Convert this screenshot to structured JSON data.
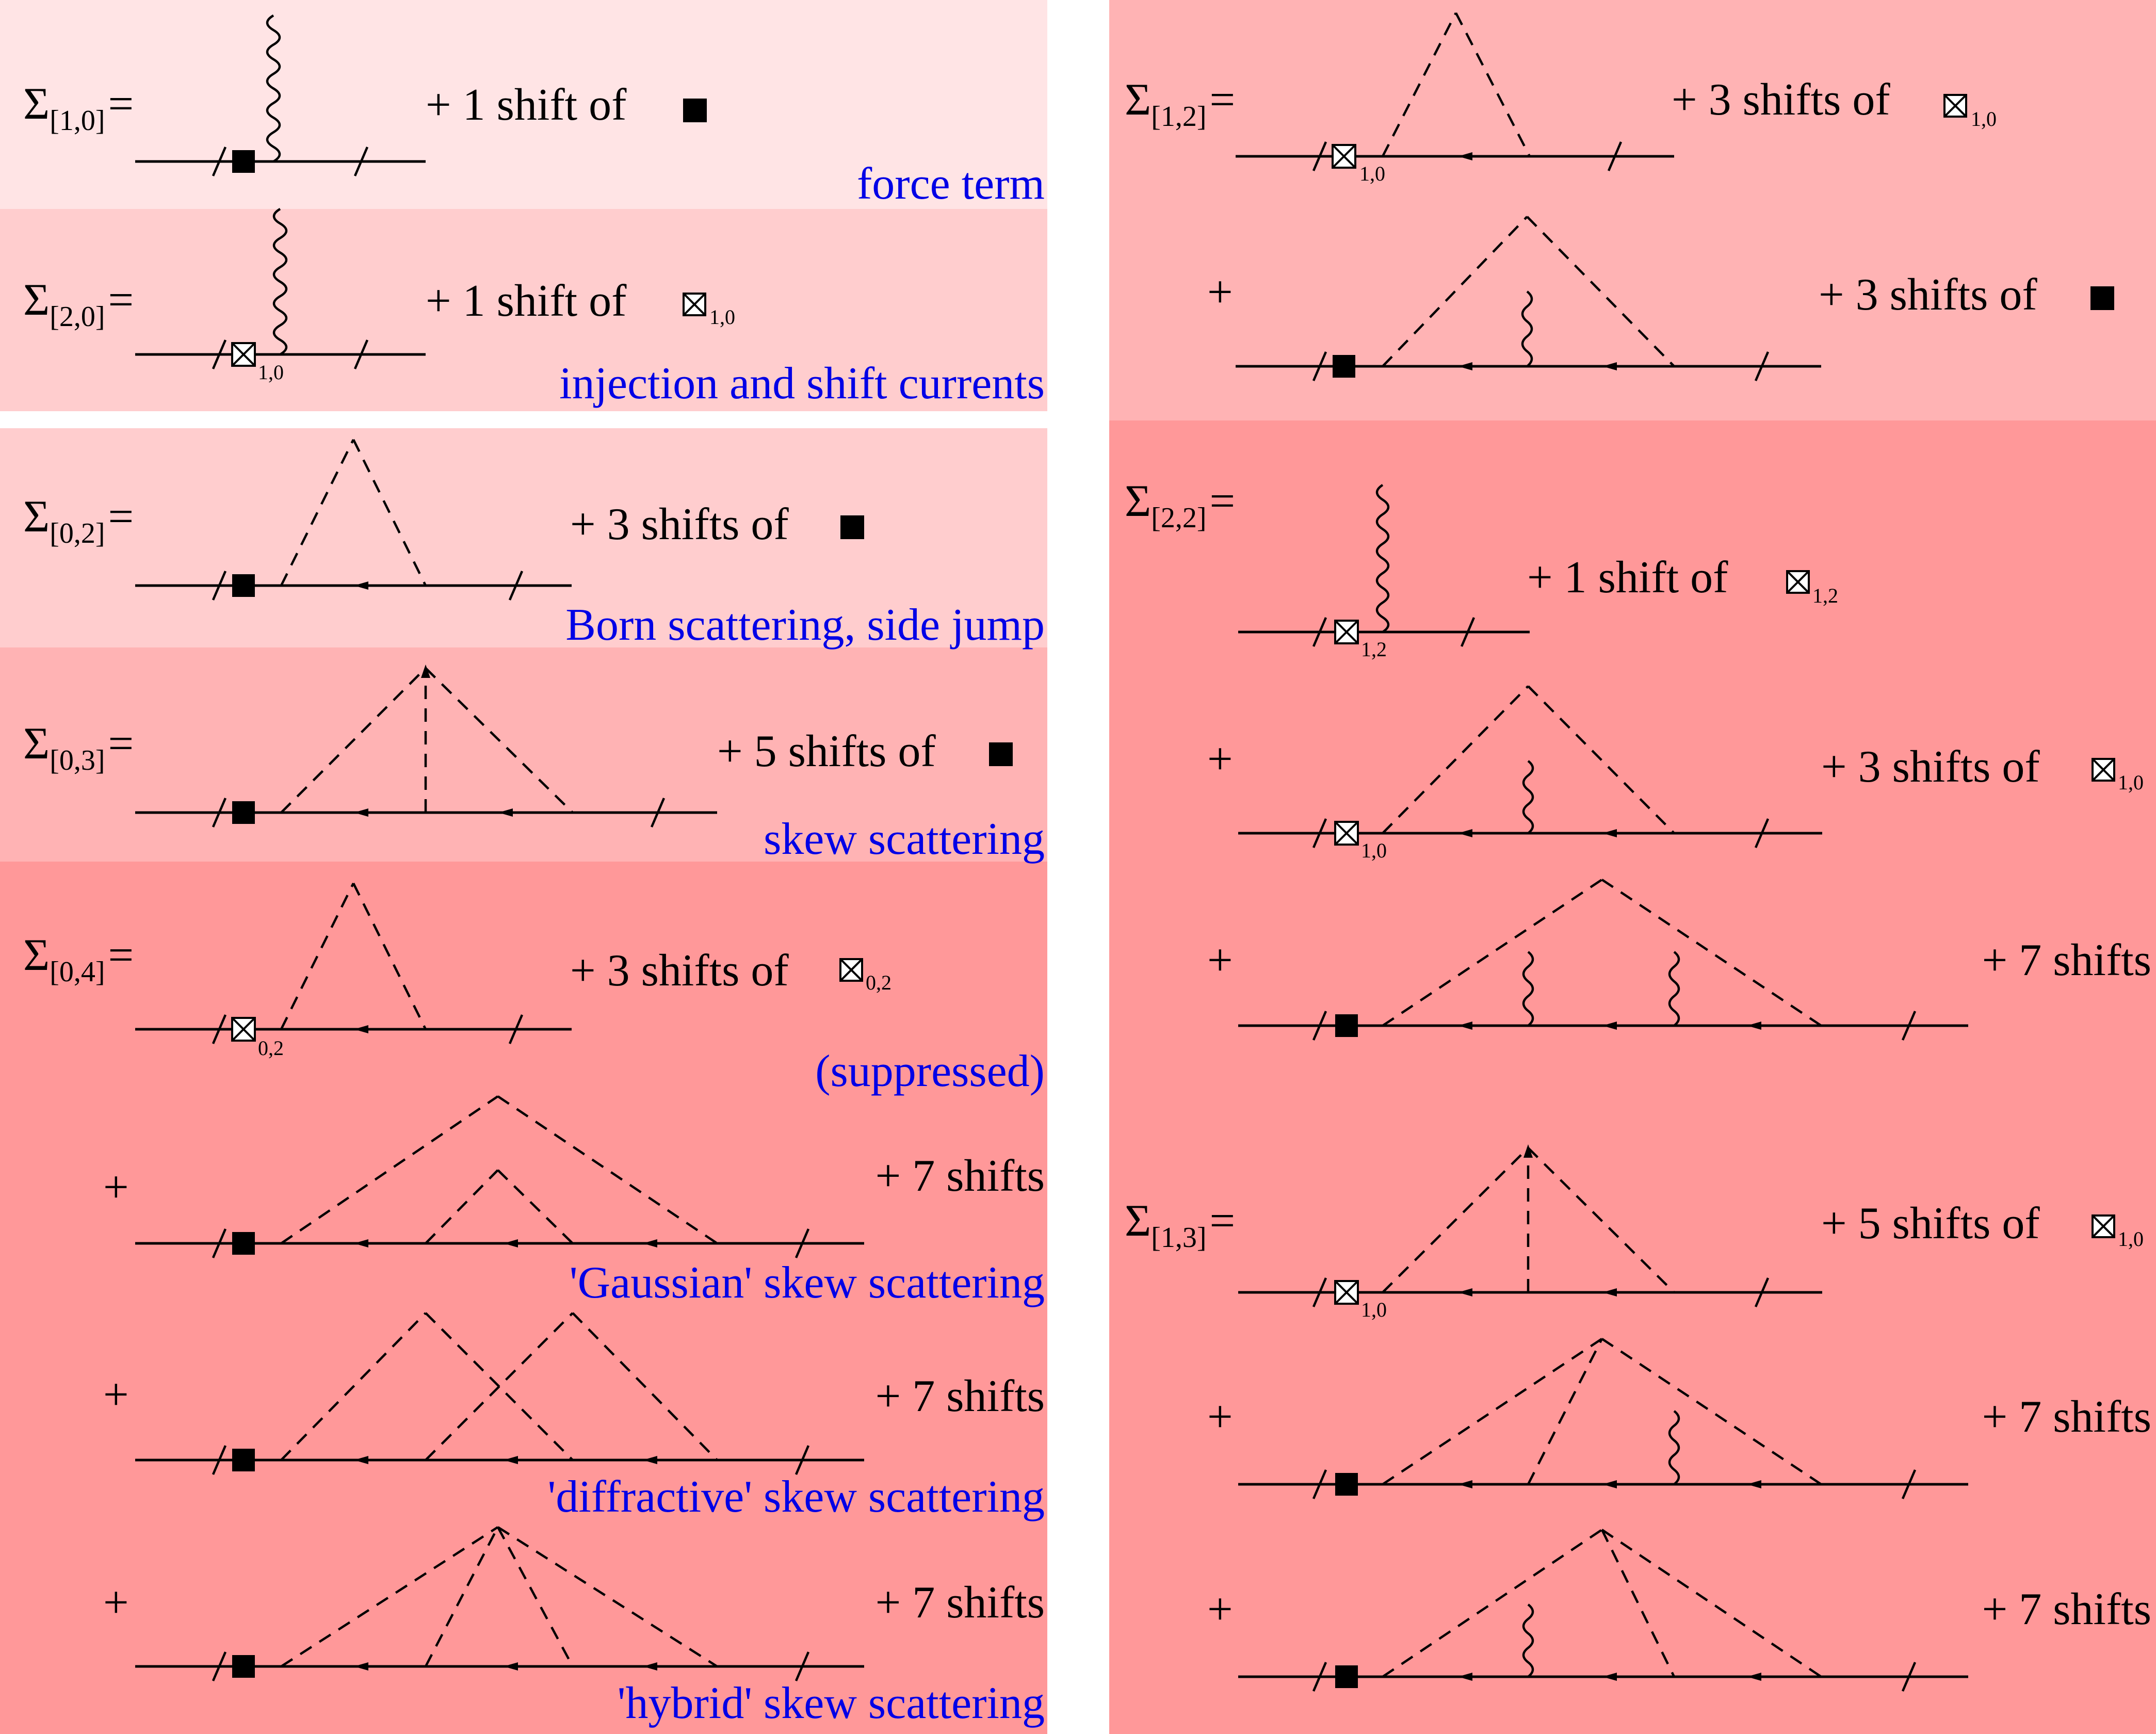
{
  "colors": {
    "band_light": "#ffe4e5",
    "band_mid": "#ffcdce",
    "band_medium": "#ffb3b4",
    "band_dark": "#ff9899",
    "caption": "#0000e6"
  },
  "left_column": [
    {
      "id": "s10",
      "label_sym": "Σ",
      "label_sub": "[1,0]",
      "label_eq": "=",
      "shifts": "+ 1 shift of",
      "vertex": "filled-square",
      "vertex_sub": "",
      "caption": "force term"
    },
    {
      "id": "s20",
      "label_sym": "Σ",
      "label_sub": "[2,0]",
      "label_eq": "=",
      "shifts": "+ 1 shift of",
      "vertex": "crossed-square",
      "vertex_sub": "1,0",
      "caption": "injection and shift currents"
    },
    {
      "id": "s02",
      "label_sym": "Σ",
      "label_sub": "[0,2]",
      "label_eq": "=",
      "shifts": "+ 3 shifts of",
      "vertex": "filled-square",
      "vertex_sub": "",
      "caption": "Born scattering, side jump"
    },
    {
      "id": "s03",
      "label_sym": "Σ",
      "label_sub": "[0,3]",
      "label_eq": "=",
      "shifts": "+ 5 shifts of",
      "vertex": "filled-square",
      "vertex_sub": "",
      "caption": "skew scattering"
    },
    {
      "id": "s04",
      "label_sym": "Σ",
      "label_sub": "[0,4]",
      "label_eq": "=",
      "shifts": "+ 3 shifts of",
      "vertex": "crossed-square",
      "vertex_sub": "0,2",
      "caption": "(suppressed)"
    },
    {
      "id": "s04b",
      "plus": "+",
      "shifts": "+ 7 shifts",
      "caption": "'Gaussian' skew scattering"
    },
    {
      "id": "s04c",
      "plus": "+",
      "shifts": "+ 7 shifts",
      "caption": "'diffractive' skew scattering"
    },
    {
      "id": "s04d",
      "plus": "+",
      "shifts": "+ 7 shifts",
      "caption": "'hybrid' skew scattering"
    }
  ],
  "right_column": [
    {
      "id": "s12",
      "label_sym": "Σ",
      "label_sub": "[1,2]",
      "label_eq": "=",
      "shifts": "+ 3 shifts of",
      "vertex": "crossed-square",
      "vertex_sub": "1,0"
    },
    {
      "id": "s12b",
      "plus": "+",
      "shifts": "+ 3 shifts of",
      "vertex": "filled-square",
      "vertex_sub": ""
    },
    {
      "id": "s22",
      "label_sym": "Σ",
      "label_sub": "[2,2]",
      "label_eq": "=",
      "shifts": "+ 1 shift of",
      "vertex": "crossed-square",
      "vertex_sub": "1,2"
    },
    {
      "id": "s22b",
      "plus": "+",
      "shifts": "+ 3 shifts of",
      "vertex": "crossed-square",
      "vertex_sub": "1,0"
    },
    {
      "id": "s22c",
      "plus": "+",
      "shifts": "+ 7 shifts"
    },
    {
      "id": "s13",
      "label_sym": "Σ",
      "label_sub": "[1,3]",
      "label_eq": "=",
      "shifts": "+ 5 shifts of",
      "vertex": "crossed-square",
      "vertex_sub": "1,0"
    },
    {
      "id": "s13b",
      "plus": "+",
      "shifts": "+ 7 shifts"
    },
    {
      "id": "s13c",
      "plus": "+",
      "shifts": "+ 7 shifts"
    }
  ]
}
